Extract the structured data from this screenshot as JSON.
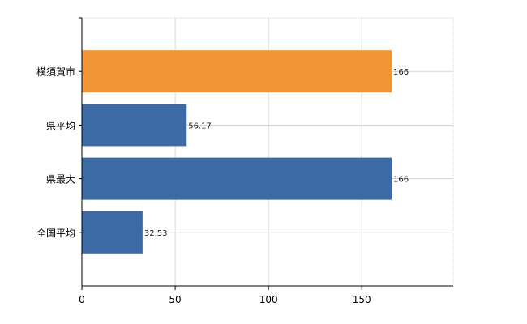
{
  "chart_data": {
    "type": "bar",
    "orientation": "horizontal",
    "categories": [
      "横須賀市",
      "県平均",
      "県最大",
      "全国平均"
    ],
    "values": [
      166,
      56.17,
      166,
      32.53
    ],
    "value_labels": [
      "166",
      "56.17",
      "166",
      "32.53"
    ],
    "bar_colors": [
      "#ef9536",
      "#3b6aa5",
      "#3b6aa5",
      "#3b6aa5"
    ],
    "xlim": [
      0,
      199
    ],
    "xticks": [
      0,
      50,
      100,
      150
    ],
    "grid": true,
    "legend": "none"
  }
}
